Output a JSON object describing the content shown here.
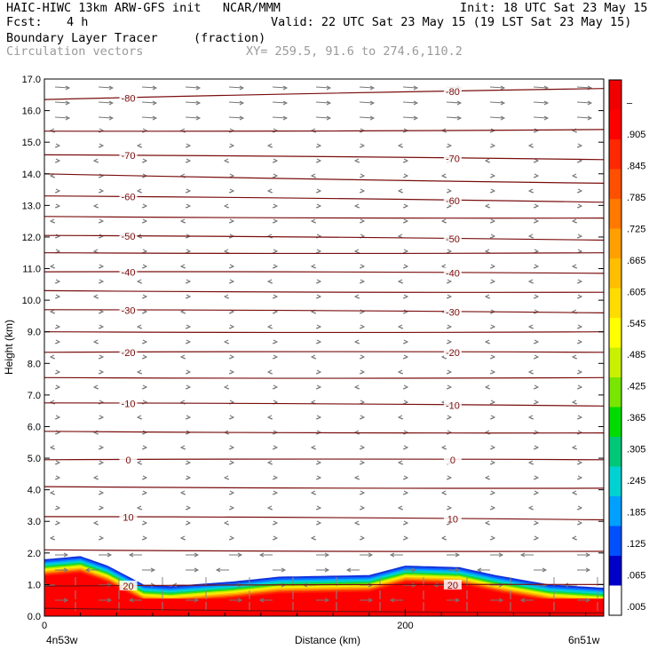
{
  "header": {
    "title_left": "HAIC-HIWC 13km ARW-GFS init   NCAR/MMM",
    "init": "Init: 18 UTC Sat 23 May 15",
    "fcst_label": "Fcst:",
    "fcst_value": "4 h",
    "valid": "Valid: 22 UTC Sat 23 May 15 (19 LST Sat 23 May 15)",
    "field_name": "Boundary Layer Tracer",
    "field_unit": "(fraction)",
    "vector_name": "Circulation vectors",
    "xy_range": "XY= 259.5, 91.6 to 274.6,110.2"
  },
  "chart_data": {
    "type": "heatmap",
    "ylabel": "Height (km)",
    "xlabel": "Distance (km)",
    "ylim": [
      0,
      17
    ],
    "xlim": [
      0,
      310
    ],
    "yticks": [
      "0.0",
      "1.0",
      "2.0",
      "3.0",
      "4.0",
      "5.0",
      "6.0",
      "7.0",
      "8.0",
      "9.0",
      "10.0",
      "11.0",
      "12.0",
      "13.0",
      "14.0",
      "15.0",
      "16.0",
      "17.0"
    ],
    "xticks": [
      {
        "x": 0,
        "label": "0"
      },
      {
        "x": 200,
        "label": "200"
      }
    ],
    "x_end_labels": {
      "left": "4n53w",
      "right": "6n51w"
    },
    "colorbar": {
      "labels": [
        ".005",
        ".065",
        ".125",
        ".185",
        ".245",
        ".305",
        ".365",
        ".425",
        ".485",
        ".545",
        ".605",
        ".665",
        ".725",
        ".785",
        ".845",
        ".905",
        "–"
      ],
      "colors": [
        "#ffffff",
        "#0000c8",
        "#0050ff",
        "#00a0ff",
        "#00d2d2",
        "#00c878",
        "#00dc00",
        "#78e600",
        "#c8f000",
        "#ffff00",
        "#ffdc00",
        "#ffbe00",
        "#ffa000",
        "#ff7800",
        "#ff5000",
        "#ff2800",
        "#ff0000",
        "#f00000"
      ]
    },
    "boundary_layer_top": [
      {
        "x": 0,
        "y": 1.8
      },
      {
        "x": 20,
        "y": 1.9
      },
      {
        "x": 35,
        "y": 1.6
      },
      {
        "x": 55,
        "y": 1.0
      },
      {
        "x": 70,
        "y": 0.95
      },
      {
        "x": 105,
        "y": 1.1
      },
      {
        "x": 130,
        "y": 1.25
      },
      {
        "x": 180,
        "y": 1.3
      },
      {
        "x": 200,
        "y": 1.6
      },
      {
        "x": 230,
        "y": 1.55
      },
      {
        "x": 250,
        "y": 1.3
      },
      {
        "x": 280,
        "y": 1.0
      },
      {
        "x": 310,
        "y": 0.9
      }
    ],
    "temperature_contours": [
      {
        "label": "-80",
        "y_left": 16.35,
        "y_right": 16.7
      },
      {
        "label": "",
        "y_left": 15.35,
        "y_right": 15.4
      },
      {
        "label": "-70",
        "y_left": 14.6,
        "y_right": 14.45
      },
      {
        "label": "",
        "y_left": 14.0,
        "y_right": 13.7
      },
      {
        "label": "-60",
        "y_left": 13.3,
        "y_right": 13.1
      },
      {
        "label": "",
        "y_left": 12.65,
        "y_right": 12.6
      },
      {
        "label": "-50",
        "y_left": 12.05,
        "y_right": 11.9
      },
      {
        "label": "",
        "y_left": 11.5,
        "y_right": 11.5
      },
      {
        "label": "-40",
        "y_left": 10.9,
        "y_right": 10.85
      },
      {
        "label": "",
        "y_left": 10.3,
        "y_right": 10.25
      },
      {
        "label": "-30",
        "y_left": 9.7,
        "y_right": 9.6
      },
      {
        "label": "",
        "y_left": 9.0,
        "y_right": 9.0
      },
      {
        "label": "-20",
        "y_left": 8.35,
        "y_right": 8.35
      },
      {
        "label": "",
        "y_left": 7.55,
        "y_right": 7.55
      },
      {
        "label": "-10",
        "y_left": 6.75,
        "y_right": 6.65
      },
      {
        "label": "",
        "y_left": 5.85,
        "y_right": 5.8
      },
      {
        "label": "0",
        "y_left": 4.95,
        "y_right": 4.95
      },
      {
        "label": "",
        "y_left": 4.1,
        "y_right": 4.05
      },
      {
        "label": "10",
        "y_left": 3.15,
        "y_right": 3.05
      },
      {
        "label": "",
        "y_left": 2.1,
        "y_right": 2.05
      },
      {
        "label": "20",
        "y_left": 0.95,
        "y_right": 1.0
      },
      {
        "label": "",
        "y_left": 0.25,
        "y_right": 0.1
      }
    ]
  }
}
